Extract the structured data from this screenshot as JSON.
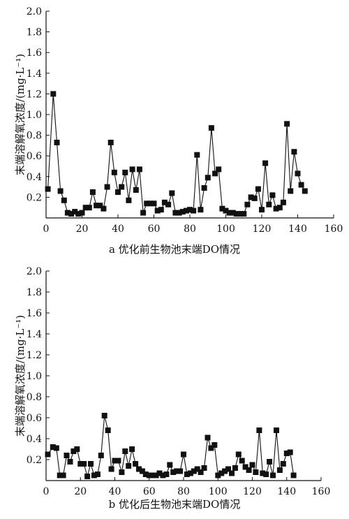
{
  "chart_data": [
    {
      "type": "line",
      "markers": "square",
      "title": "a 优化前生物池末端DO情况",
      "ylabel": "末端溶解氧浓度/(mg·L⁻¹)",
      "xlabel": "",
      "xlim": [
        0,
        160
      ],
      "ylim": [
        0,
        2.0
      ],
      "xticks": [
        "0",
        "20",
        "40",
        "60",
        "80",
        "100",
        "120",
        "140",
        "160"
      ],
      "yticks": [
        "0.2",
        "0.4",
        "0.6",
        "0.8",
        "1.0",
        "1.2",
        "1.4",
        "1.6",
        "1.8",
        "2.0"
      ],
      "x": [
        1,
        4,
        6,
        8,
        10,
        12,
        14,
        16,
        18,
        20,
        22,
        24,
        26,
        28,
        30,
        32,
        34,
        36,
        38,
        40,
        42,
        44,
        46,
        48,
        50,
        52,
        54,
        56,
        58,
        60,
        62,
        64,
        66,
        68,
        70,
        72,
        74,
        76,
        78,
        80,
        82,
        84,
        86,
        88,
        90,
        92,
        94,
        96,
        98,
        100,
        102,
        104,
        106,
        108,
        110,
        112,
        114,
        116,
        118,
        120,
        122,
        124,
        126,
        128,
        130,
        132,
        134,
        136,
        138,
        140,
        142,
        144
      ],
      "y": [
        0.28,
        1.2,
        0.73,
        0.26,
        0.17,
        0.05,
        0.04,
        0.06,
        0.04,
        0.05,
        0.1,
        0.1,
        0.25,
        0.12,
        0.12,
        0.09,
        0.3,
        0.73,
        0.44,
        0.25,
        0.3,
        0.44,
        0.17,
        0.47,
        0.27,
        0.47,
        0.05,
        0.14,
        0.14,
        0.14,
        0.07,
        0.08,
        0.15,
        0.13,
        0.24,
        0.05,
        0.05,
        0.06,
        0.07,
        0.08,
        0.07,
        0.61,
        0.08,
        0.29,
        0.39,
        0.87,
        0.43,
        0.47,
        0.09,
        0.07,
        0.05,
        0.05,
        0.04,
        0.04,
        0.04,
        0.13,
        0.2,
        0.19,
        0.28,
        0.08,
        0.53,
        0.13,
        0.22,
        0.09,
        0.1,
        0.15,
        0.91,
        0.26,
        0.64,
        0.43,
        0.32,
        0.26
      ]
    },
    {
      "type": "line",
      "markers": "square",
      "title": "b 优化后生物池末端DO情况",
      "ylabel": "末端溶解氧浓度/(mg·L⁻¹)",
      "xlabel": "",
      "xlim": [
        0,
        160
      ],
      "ylim": [
        0,
        2.0
      ],
      "xticks": [
        "0",
        "20",
        "40",
        "60",
        "80",
        "100",
        "120",
        "140",
        "160"
      ],
      "yticks": [
        "0.2",
        "0.4",
        "0.6",
        "0.8",
        "1.0",
        "1.2",
        "1.4",
        "1.6",
        "1.8",
        "2.0"
      ],
      "x": [
        1,
        4,
        6,
        8,
        10,
        12,
        14,
        16,
        18,
        20,
        22,
        24,
        26,
        28,
        30,
        32,
        34,
        36,
        38,
        40,
        42,
        44,
        46,
        48,
        50,
        52,
        54,
        56,
        58,
        60,
        62,
        64,
        66,
        68,
        70,
        72,
        74,
        76,
        78,
        80,
        82,
        84,
        86,
        88,
        90,
        92,
        94,
        96,
        98,
        100,
        102,
        104,
        106,
        108,
        110,
        112,
        114,
        116,
        118,
        120,
        122,
        124,
        126,
        128,
        130,
        132,
        134,
        136,
        138,
        140,
        142,
        144
      ],
      "y": [
        0.25,
        0.32,
        0.31,
        0.05,
        0.05,
        0.24,
        0.18,
        0.28,
        0.3,
        0.16,
        0.16,
        0.04,
        0.16,
        0.05,
        0.06,
        0.24,
        0.62,
        0.48,
        0.11,
        0.19,
        0.19,
        0.08,
        0.28,
        0.14,
        0.3,
        0.16,
        0.11,
        0.09,
        0.06,
        0.05,
        0.05,
        0.05,
        0.07,
        0.05,
        0.06,
        0.15,
        0.08,
        0.09,
        0.09,
        0.25,
        0.06,
        0.07,
        0.09,
        0.11,
        0.08,
        0.12,
        0.41,
        0.31,
        0.34,
        0.05,
        0.07,
        0.09,
        0.11,
        0.07,
        0.12,
        0.25,
        0.19,
        0.13,
        0.1,
        0.15,
        0.08,
        0.48,
        0.07,
        0.06,
        0.18,
        0.05,
        0.48,
        0.1,
        0.16,
        0.26,
        0.27,
        0.05
      ]
    }
  ]
}
